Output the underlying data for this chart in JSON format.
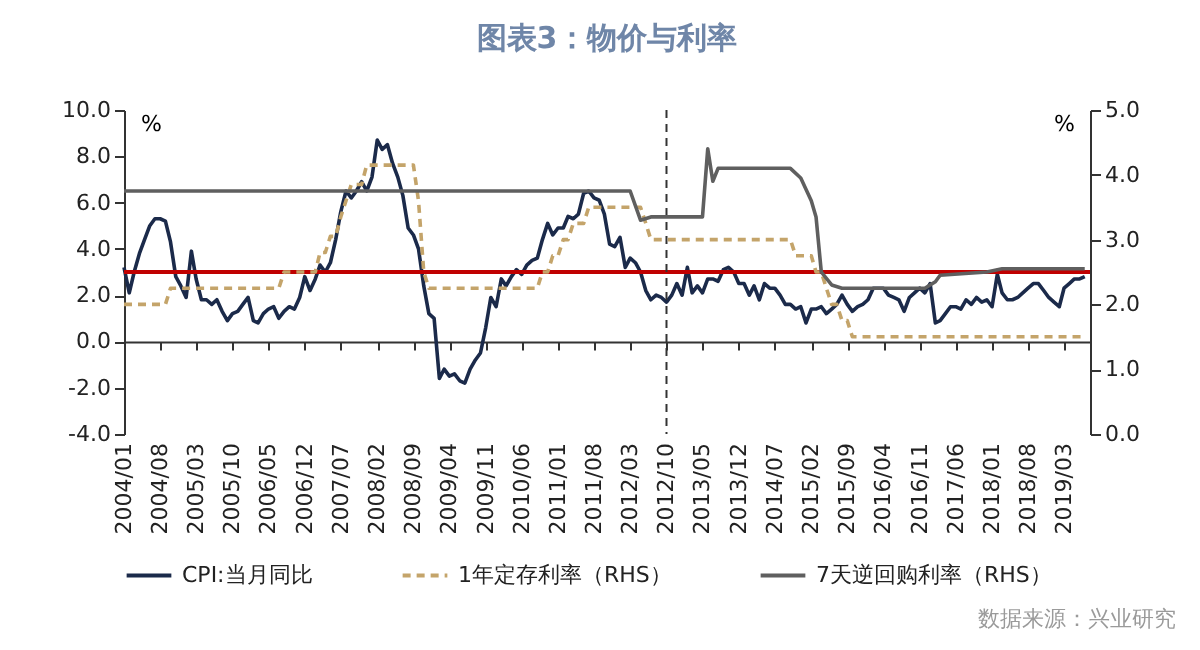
{
  "chart_data": {
    "type": "line",
    "title": "图表3：物价与利率",
    "ylabel": "%",
    "y2label": "%",
    "x": [
      "2004-01",
      "2004-02",
      "2004-03",
      "2004-04",
      "2004-05",
      "2004-06",
      "2004-07",
      "2004-08",
      "2004-09",
      "2004-10",
      "2004-11",
      "2004-12",
      "2005-01",
      "2005-02",
      "2005-03",
      "2005-04",
      "2005-05",
      "2005-06",
      "2005-07",
      "2005-08",
      "2005-09",
      "2005-10",
      "2005-11",
      "2005-12",
      "2006-01",
      "2006-02",
      "2006-03",
      "2006-04",
      "2006-05",
      "2006-06",
      "2006-07",
      "2006-08",
      "2006-09",
      "2006-10",
      "2006-11",
      "2006-12",
      "2007-01",
      "2007-02",
      "2007-03",
      "2007-04",
      "2007-05",
      "2007-06",
      "2007-07",
      "2007-08",
      "2007-09",
      "2007-10",
      "2007-11",
      "2007-12",
      "2008-01",
      "2008-02",
      "2008-03",
      "2008-04",
      "2008-05",
      "2008-06",
      "2008-07",
      "2008-08",
      "2008-09",
      "2008-10",
      "2008-11",
      "2008-12",
      "2009-01",
      "2009-02",
      "2009-03",
      "2009-04",
      "2009-05",
      "2009-06",
      "2009-07",
      "2009-08",
      "2009-09",
      "2009-10",
      "2009-11",
      "2009-12",
      "2010-01",
      "2010-02",
      "2010-03",
      "2010-04",
      "2010-05",
      "2010-06",
      "2010-07",
      "2010-08",
      "2010-09",
      "2010-10",
      "2010-11",
      "2010-12",
      "2011-01",
      "2011-02",
      "2011-03",
      "2011-04",
      "2011-05",
      "2011-06",
      "2011-07",
      "2011-08",
      "2011-09",
      "2011-10",
      "2011-11",
      "2011-12",
      "2012-01",
      "2012-02",
      "2012-03",
      "2012-04",
      "2012-05",
      "2012-06",
      "2012-07",
      "2012-08",
      "2012-09",
      "2012-10",
      "2012-11",
      "2012-12",
      "2013-01",
      "2013-02",
      "2013-03",
      "2013-04",
      "2013-05",
      "2013-06",
      "2013-07",
      "2013-08",
      "2013-09",
      "2013-10",
      "2013-11",
      "2013-12",
      "2014-01",
      "2014-02",
      "2014-03",
      "2014-04",
      "2014-05",
      "2014-06",
      "2014-07",
      "2014-08",
      "2014-09",
      "2014-10",
      "2014-11",
      "2014-12",
      "2015-01",
      "2015-02",
      "2015-03",
      "2015-04",
      "2015-05",
      "2015-06",
      "2015-07",
      "2015-08",
      "2015-09",
      "2015-10",
      "2015-11",
      "2015-12",
      "2016-01",
      "2016-02",
      "2016-03",
      "2016-04",
      "2016-05",
      "2016-06",
      "2016-07",
      "2016-08",
      "2016-09",
      "2016-10",
      "2016-11",
      "2016-12",
      "2017-01",
      "2017-02",
      "2017-03",
      "2017-04",
      "2017-05",
      "2017-06",
      "2017-07",
      "2017-08",
      "2017-09",
      "2017-10",
      "2017-11",
      "2017-12",
      "2018-01",
      "2018-02",
      "2018-03",
      "2018-04",
      "2018-05",
      "2018-06",
      "2018-07",
      "2018-08",
      "2018-09",
      "2018-10",
      "2018-11",
      "2018-12",
      "2019-01",
      "2019-02",
      "2019-03",
      "2019-04",
      "2019-05",
      "2019-06",
      "2019-07"
    ],
    "series": [
      {
        "name": "CPI:当月同比",
        "type": "line",
        "color": "#1b2a4a",
        "values": [
          3.2,
          2.1,
          3.0,
          3.8,
          4.4,
          5.0,
          5.3,
          5.3,
          5.2,
          4.3,
          2.8,
          2.4,
          1.9,
          3.9,
          2.7,
          1.8,
          1.8,
          1.6,
          1.8,
          1.3,
          0.9,
          1.2,
          1.3,
          1.6,
          1.9,
          0.9,
          0.8,
          1.2,
          1.4,
          1.5,
          1.0,
          1.3,
          1.5,
          1.4,
          1.9,
          2.8,
          2.2,
          2.7,
          3.3,
          3.0,
          3.4,
          4.4,
          5.6,
          6.5,
          6.2,
          6.5,
          6.9,
          6.5,
          7.1,
          8.7,
          8.3,
          8.5,
          7.7,
          7.1,
          6.3,
          4.9,
          4.6,
          4.0,
          2.4,
          1.2,
          1.0,
          -1.6,
          -1.2,
          -1.5,
          -1.4,
          -1.7,
          -1.8,
          -1.2,
          -0.8,
          -0.5,
          0.6,
          1.9,
          1.5,
          2.7,
          2.4,
          2.8,
          3.1,
          2.9,
          3.3,
          3.5,
          3.6,
          4.4,
          5.1,
          4.6,
          4.9,
          4.9,
          5.4,
          5.3,
          5.5,
          6.4,
          6.5,
          6.2,
          6.1,
          5.5,
          4.2,
          4.1,
          4.5,
          3.2,
          3.6,
          3.4,
          3.0,
          2.2,
          1.8,
          2.0,
          1.9,
          1.7,
          2.0,
          2.5,
          2.0,
          3.2,
          2.1,
          2.4,
          2.1,
          2.7,
          2.7,
          2.6,
          3.1,
          3.2,
          3.0,
          2.5,
          2.5,
          2.0,
          2.4,
          1.8,
          2.5,
          2.3,
          2.3,
          2.0,
          1.6,
          1.6,
          1.4,
          1.5,
          0.8,
          1.4,
          1.4,
          1.5,
          1.2,
          1.4,
          1.6,
          2.0,
          1.6,
          1.3,
          1.5,
          1.6,
          1.8,
          2.3,
          2.3,
          2.3,
          2.0,
          1.9,
          1.8,
          1.3,
          1.9,
          2.1,
          2.3,
          2.1,
          2.5,
          0.8,
          0.9,
          1.2,
          1.5,
          1.5,
          1.4,
          1.8,
          1.6,
          1.9,
          1.7,
          1.8,
          1.5,
          2.9,
          2.1,
          1.8,
          1.8,
          1.9,
          2.1,
          2.3,
          2.5,
          2.5,
          2.2,
          1.9,
          1.7,
          1.5,
          2.3,
          2.5,
          2.7,
          2.7,
          2.8
        ]
      },
      {
        "name": "1年定存利率（RHS）",
        "type": "line",
        "axis": "y2",
        "line_style": "dashed",
        "color": "#c4a46a",
        "x": [
          "2004-01",
          "2004-09",
          "2004-10",
          "2006-07",
          "2006-08",
          "2007-02",
          "2007-03",
          "2007-04",
          "2007-05",
          "2007-06",
          "2007-07",
          "2007-08",
          "2007-09",
          "2007-11",
          "2007-12",
          "2008-09",
          "2008-10",
          "2008-11",
          "2008-12",
          "2010-09",
          "2010-10",
          "2010-11",
          "2010-12",
          "2011-01",
          "2011-02",
          "2011-03",
          "2011-04",
          "2011-06",
          "2011-07",
          "2012-05",
          "2012-06",
          "2012-07",
          "2014-10",
          "2014-11",
          "2015-02",
          "2015-03",
          "2015-04",
          "2015-05",
          "2015-06",
          "2015-07",
          "2015-08",
          "2015-09",
          "2015-10",
          "2019-07"
        ],
        "values": [
          2.0,
          2.0,
          2.25,
          2.25,
          2.5,
          2.5,
          2.8,
          2.8,
          3.05,
          3.05,
          3.35,
          3.6,
          3.85,
          3.85,
          4.15,
          4.15,
          3.6,
          2.5,
          2.25,
          2.25,
          2.5,
          2.5,
          2.75,
          2.75,
          3.0,
          3.0,
          3.25,
          3.25,
          3.5,
          3.5,
          3.25,
          3.0,
          3.0,
          2.75,
          2.75,
          2.5,
          2.5,
          2.25,
          2.0,
          2.0,
          1.75,
          1.75,
          1.5,
          1.5
        ]
      },
      {
        "name": "7天逆回购利率（RHS）",
        "type": "line",
        "axis": "y2",
        "color": "#5f5f5f",
        "x": [
          "2004-01",
          "2012-03",
          "2012-05",
          "2012-07",
          "2013-05",
          "2013-06",
          "2013-07",
          "2013-08",
          "2014-10",
          "2014-12",
          "2015-02",
          "2015-03",
          "2015-04",
          "2015-06",
          "2015-08",
          "2016-12",
          "2017-02",
          "2017-03",
          "2017-12",
          "2018-03",
          "2019-07"
        ],
        "values": [
          3.75,
          3.75,
          3.3,
          3.35,
          3.35,
          4.4,
          3.9,
          4.1,
          4.1,
          3.95,
          3.6,
          3.35,
          2.5,
          2.3,
          2.25,
          2.25,
          2.35,
          2.45,
          2.5,
          2.55,
          2.55
        ]
      }
    ],
    "xlim": [
      "2004-01",
      "2019-08"
    ],
    "xticks": [
      {
        "value": "2004-01",
        "label": "2004/01"
      },
      {
        "value": "2004-08",
        "label": "2004/08"
      },
      {
        "value": "2005-03",
        "label": "2005/03"
      },
      {
        "value": "2005-10",
        "label": "2005/10"
      },
      {
        "value": "2006-05",
        "label": "2006/05"
      },
      {
        "value": "2006-12",
        "label": "2006/12"
      },
      {
        "value": "2007-07",
        "label": "2007/07"
      },
      {
        "value": "2008-02",
        "label": "2008/02"
      },
      {
        "value": "2008-09",
        "label": "2008/09"
      },
      {
        "value": "2009-04",
        "label": "2009/04"
      },
      {
        "value": "2009-11",
        "label": "2009/11"
      },
      {
        "value": "2010-06",
        "label": "2010/06"
      },
      {
        "value": "2011-01",
        "label": "2011/01"
      },
      {
        "value": "2011-08",
        "label": "2011/08"
      },
      {
        "value": "2012-03",
        "label": "2012/03"
      },
      {
        "value": "2012-10",
        "label": "2012/10"
      },
      {
        "value": "2013-05",
        "label": "2013/05"
      },
      {
        "value": "2013-12",
        "label": "2013/12"
      },
      {
        "value": "2014-07",
        "label": "2014/07"
      },
      {
        "value": "2015-02",
        "label": "2015/02"
      },
      {
        "value": "2015-09",
        "label": "2015/09"
      },
      {
        "value": "2016-04",
        "label": "2016/04"
      },
      {
        "value": "2016-11",
        "label": "2016/11"
      },
      {
        "value": "2017-06",
        "label": "2017/06"
      },
      {
        "value": "2018-01",
        "label": "2018/01"
      },
      {
        "value": "2018-08",
        "label": "2018/08"
      },
      {
        "value": "2019-03",
        "label": "2019/03"
      }
    ],
    "ylim": [
      -4,
      10
    ],
    "yticks": [
      {
        "value": -4,
        "label": "-4.0"
      },
      {
        "value": -2,
        "label": "-2.0"
      },
      {
        "value": 0,
        "label": "0.0"
      },
      {
        "value": 2,
        "label": "2.0"
      },
      {
        "value": 4,
        "label": "4.0"
      },
      {
        "value": 6,
        "label": "6.0"
      },
      {
        "value": 8,
        "label": "8.0"
      },
      {
        "value": 10,
        "label": "10.0"
      }
    ],
    "y2lim": [
      0,
      5
    ],
    "y2ticks": [
      {
        "value": 0,
        "label": "0.0"
      },
      {
        "value": 1,
        "label": "1.0"
      },
      {
        "value": 2,
        "label": "2.0"
      },
      {
        "value": 3,
        "label": "3.0"
      },
      {
        "value": 4,
        "label": "4.0"
      },
      {
        "value": 5,
        "label": "5.0"
      }
    ],
    "ref_lines": [
      {
        "axis": "y",
        "value": 3,
        "color": "#c00000",
        "line_style": "solid"
      },
      {
        "axis": "x",
        "value": "2012-10",
        "color": "#333333",
        "line_style": "dashed"
      }
    ],
    "legend": "bottom",
    "annotations": [
      "数据来源：兴业研究"
    ]
  }
}
